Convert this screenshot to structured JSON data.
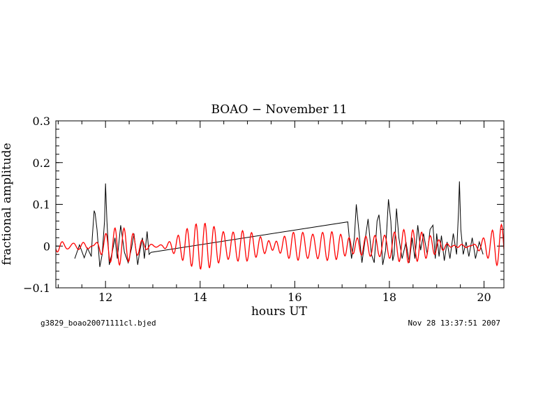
{
  "chart_data": {
    "type": "line",
    "title": "BOAO − November 11",
    "xlabel": "hours UT",
    "ylabel": "fractional amplitude",
    "xlim": [
      10.95,
      20.42
    ],
    "ylim": [
      -0.1,
      0.3
    ],
    "x_ticks": [
      12,
      14,
      16,
      18,
      20
    ],
    "x_tick_labels": [
      "12",
      "14",
      "16",
      "18",
      "20"
    ],
    "y_ticks": [
      -0.1,
      0,
      0.1,
      0.2,
      0.3
    ],
    "y_tick_labels": [
      "−0.1",
      "0",
      "0.1",
      "0.2",
      "0.3"
    ],
    "grid": false,
    "series": [
      {
        "color": "#000000",
        "x": [
          11.35,
          11.45,
          11.55,
          11.62,
          11.7,
          11.72,
          11.76,
          11.78,
          11.82,
          11.88,
          11.93,
          11.98,
          12.0,
          12.03,
          12.08,
          12.15,
          12.2,
          12.25,
          12.32,
          12.4,
          12.48,
          12.55,
          12.6,
          12.68,
          12.72,
          12.78,
          12.82,
          12.88,
          12.92,
          12.96,
          17.12,
          17.16,
          17.2,
          17.26,
          17.3,
          17.36,
          17.42,
          17.48,
          17.55,
          17.62,
          17.68,
          17.74,
          17.78,
          17.82,
          17.86,
          17.92,
          17.98,
          18.03,
          18.07,
          18.1,
          18.15,
          18.2,
          18.27,
          18.35,
          18.42,
          18.48,
          18.54,
          18.6,
          18.66,
          18.72,
          18.8,
          18.86,
          18.92,
          18.97,
          19.0,
          19.05,
          19.1,
          19.16,
          19.22,
          19.28,
          19.35,
          19.42,
          19.46,
          19.48,
          19.51,
          19.56,
          19.62,
          19.68,
          19.75,
          19.82,
          19.9,
          19.98
        ],
        "y": [
          -0.03,
          0.003,
          -0.028,
          -0.005,
          -0.025,
          0.02,
          0.085,
          0.078,
          0.04,
          -0.05,
          -0.02,
          0.06,
          0.15,
          0.06,
          -0.045,
          -0.01,
          0.02,
          -0.03,
          0.05,
          -0.015,
          -0.04,
          -0.005,
          0.03,
          -0.045,
          -0.015,
          0.02,
          -0.03,
          0.035,
          -0.02,
          -0.015,
          0.058,
          0.01,
          -0.03,
          0.02,
          0.1,
          0.03,
          -0.04,
          0.01,
          0.065,
          -0.02,
          -0.04,
          0.06,
          0.075,
          0.03,
          -0.045,
          -0.01,
          0.112,
          0.06,
          -0.035,
          -0.02,
          0.09,
          0.02,
          -0.03,
          0.01,
          -0.04,
          0.02,
          -0.03,
          0.05,
          -0.01,
          0.03,
          -0.02,
          0.04,
          0.05,
          -0.03,
          0.03,
          -0.025,
          0.025,
          -0.035,
          0.01,
          -0.03,
          0.03,
          -0.02,
          0.08,
          0.155,
          0.04,
          -0.02,
          0.01,
          -0.025,
          0.02,
          -0.03,
          0.01,
          -0.02
        ]
      },
      {
        "color": "#ff0000",
        "x_start": 10.95,
        "x_end": 20.42,
        "amplitude": [
          0.018,
          0.024,
          0.04,
          0.036,
          0.028,
          0.032,
          0.04,
          0.052,
          0.056,
          0.032,
          0.035,
          0.04,
          0.034,
          0.032,
          0.03,
          0.038,
          0.034,
          0.036,
          0.036,
          0.036,
          0.04
        ],
        "period_hours": [
          0.19,
          0.21,
          0.17,
          0.2,
          0.22
        ],
        "weight": [
          0.55,
          0.3,
          0.25,
          0.2,
          0.15
        ]
      }
    ]
  },
  "footer": {
    "left": "g3829_boao20071111cl.bjed",
    "right": "Nov 28 13:37:51 2007"
  }
}
